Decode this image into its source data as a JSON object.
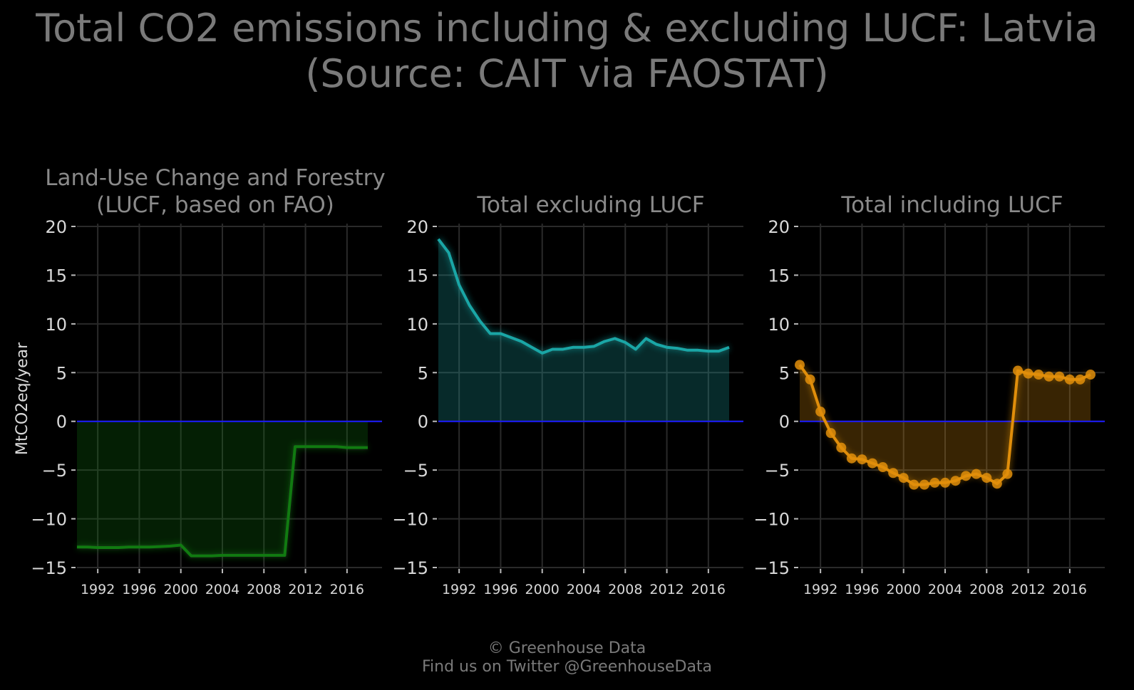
{
  "title_line1": "Total CO2 emissions including & excluding LUCF: Latvia",
  "title_line2": "(Source: CAIT via FAOSTAT)",
  "footer_line1": "© Greenhouse Data",
  "footer_line2": "Find us on Twitter @GreenhouseData",
  "ylabel": "MtCO2eq/year",
  "colors": {
    "background": "#000000",
    "grid": "#2a2a2a",
    "zero_line": "#1a1aff",
    "text": "#d9d9d9",
    "panel_title": "#8a8a8a"
  },
  "chart_data": [
    {
      "type": "area",
      "title_lines": [
        "Land-Use Change and Forestry",
        "(LUCF, based on FAO)"
      ],
      "color": "#117a11",
      "markers": false,
      "x": [
        1990,
        1991,
        1992,
        1993,
        1994,
        1995,
        1996,
        1997,
        1998,
        1999,
        2000,
        2001,
        2002,
        2003,
        2004,
        2005,
        2006,
        2007,
        2008,
        2009,
        2010,
        2011,
        2012,
        2013,
        2014,
        2015,
        2016,
        2017,
        2018
      ],
      "y": [
        -12.9,
        -12.9,
        -12.95,
        -12.95,
        -12.95,
        -12.9,
        -12.9,
        -12.9,
        -12.85,
        -12.8,
        -12.7,
        -13.8,
        -13.8,
        -13.8,
        -13.75,
        -13.75,
        -13.75,
        -13.75,
        -13.75,
        -13.75,
        -13.75,
        -2.6,
        -2.6,
        -2.6,
        -2.6,
        -2.6,
        -2.7,
        -2.7,
        -2.7
      ],
      "xticks": [
        1992,
        1996,
        2000,
        2004,
        2008,
        2012,
        2016
      ],
      "yticks": [
        "20",
        "15",
        "10",
        "5",
        "0",
        "−5",
        "−10",
        "−15"
      ],
      "ylim": [
        -15,
        20
      ],
      "xlim": [
        1990,
        2018
      ]
    },
    {
      "type": "area",
      "title_lines": [
        "Total excluding LUCF"
      ],
      "color": "#1aa6a6",
      "markers": false,
      "x": [
        1990,
        1991,
        1992,
        1993,
        1994,
        1995,
        1996,
        1997,
        1998,
        1999,
        2000,
        2001,
        2002,
        2003,
        2004,
        2005,
        2006,
        2007,
        2008,
        2009,
        2010,
        2011,
        2012,
        2013,
        2014,
        2015,
        2016,
        2017,
        2018
      ],
      "y": [
        18.7,
        17.3,
        14.0,
        11.9,
        10.3,
        9.0,
        9.0,
        8.6,
        8.2,
        7.6,
        7.0,
        7.4,
        7.4,
        7.6,
        7.6,
        7.7,
        8.2,
        8.5,
        8.1,
        7.4,
        8.5,
        7.9,
        7.6,
        7.5,
        7.3,
        7.3,
        7.2,
        7.2,
        7.6
      ],
      "xticks": [
        1992,
        1996,
        2000,
        2004,
        2008,
        2012,
        2016
      ],
      "yticks": [
        "20",
        "15",
        "10",
        "5",
        "0",
        "−5",
        "−10",
        "−15"
      ],
      "ylim": [
        -15,
        20
      ],
      "xlim": [
        1990,
        2018
      ]
    },
    {
      "type": "area",
      "title_lines": [
        "Total including LUCF"
      ],
      "color": "#e08e0b",
      "markers": true,
      "x": [
        1990,
        1991,
        1992,
        1993,
        1994,
        1995,
        1996,
        1997,
        1998,
        1999,
        2000,
        2001,
        2002,
        2003,
        2004,
        2005,
        2006,
        2007,
        2008,
        2009,
        2010,
        2011,
        2012,
        2013,
        2014,
        2015,
        2016,
        2017,
        2018
      ],
      "y": [
        5.8,
        4.3,
        1.0,
        -1.2,
        -2.7,
        -3.8,
        -3.9,
        -4.3,
        -4.7,
        -5.3,
        -5.8,
        -6.5,
        -6.5,
        -6.3,
        -6.3,
        -6.1,
        -5.6,
        -5.4,
        -5.8,
        -6.4,
        -5.4,
        5.2,
        4.9,
        4.8,
        4.6,
        4.6,
        4.3,
        4.3,
        4.8
      ],
      "xticks": [
        1992,
        1996,
        2000,
        2004,
        2008,
        2012,
        2016
      ],
      "yticks": [
        "20",
        "15",
        "10",
        "5",
        "0",
        "−5",
        "−10",
        "−15"
      ],
      "ylim": [
        -15,
        20
      ],
      "xlim": [
        1990,
        2018
      ]
    }
  ]
}
